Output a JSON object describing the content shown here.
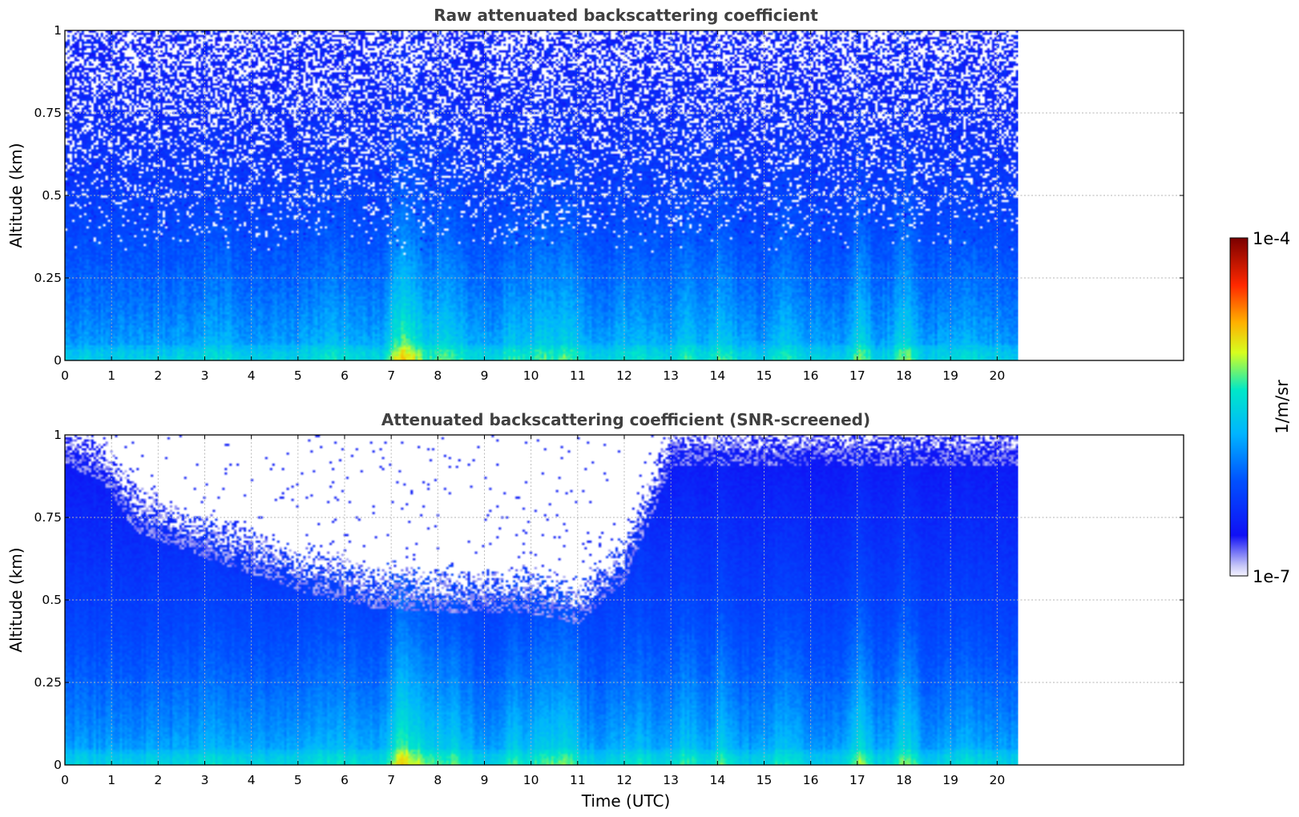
{
  "chart_data": [
    {
      "type": "heatmap",
      "title": "Raw attenuated backscattering coefficient",
      "xlabel": "",
      "ylabel": "Altitude (km)",
      "xlim": [
        0,
        24
      ],
      "ylim": [
        0,
        1
      ],
      "x_ticks": [
        "0",
        "1",
        "2",
        "3",
        "4",
        "5",
        "6",
        "7",
        "8",
        "9",
        "10",
        "11",
        "12",
        "13",
        "14",
        "15",
        "16",
        "17",
        "18",
        "19",
        "20"
      ],
      "y_ticks": [
        "0",
        "0.25",
        "0.5",
        "0.75",
        "1"
      ],
      "grid": true,
      "data_end_time": 20.45,
      "colormap": "jet",
      "description_of_values": "noisy backscatter, strongest near surface, plumes near 7-8 h, 10-11 h, 14 h, 17 h, 18 h"
    },
    {
      "type": "heatmap",
      "title": "Attenuated backscattering coefficient (SNR-screened)",
      "xlabel": "Time (UTC)",
      "ylabel": "Altitude (km)",
      "xlim": [
        0,
        24
      ],
      "ylim": [
        0,
        1
      ],
      "x_ticks": [
        "0",
        "1",
        "2",
        "3",
        "4",
        "5",
        "6",
        "7",
        "8",
        "9",
        "10",
        "11",
        "12",
        "13",
        "14",
        "15",
        "16",
        "17",
        "18",
        "19",
        "20"
      ],
      "y_ticks": [
        "0",
        "0.25",
        "0.5",
        "0.75",
        "1"
      ],
      "grid": true,
      "data_end_time": 20.45,
      "colormap": "jet",
      "screen_boundary_km": [
        [
          0,
          1.0
        ],
        [
          0.8,
          0.95
        ],
        [
          1.5,
          0.8
        ],
        [
          3,
          0.72
        ],
        [
          5,
          0.62
        ],
        [
          6.5,
          0.57
        ],
        [
          8.5,
          0.55
        ],
        [
          10,
          0.55
        ],
        [
          11,
          0.52
        ],
        [
          12,
          0.65
        ],
        [
          13,
          1.0
        ],
        [
          20.45,
          1.0
        ]
      ]
    }
  ],
  "colorbar": {
    "label": "1/m/sr",
    "max_label": "1e-4",
    "min_label": "1e-7",
    "scale": "log",
    "colors": [
      "#ecebfb",
      "#0000ff",
      "#0096ff",
      "#00e8e0",
      "#d6ff1f",
      "#ff9000",
      "#ff1a00",
      "#800000"
    ]
  }
}
